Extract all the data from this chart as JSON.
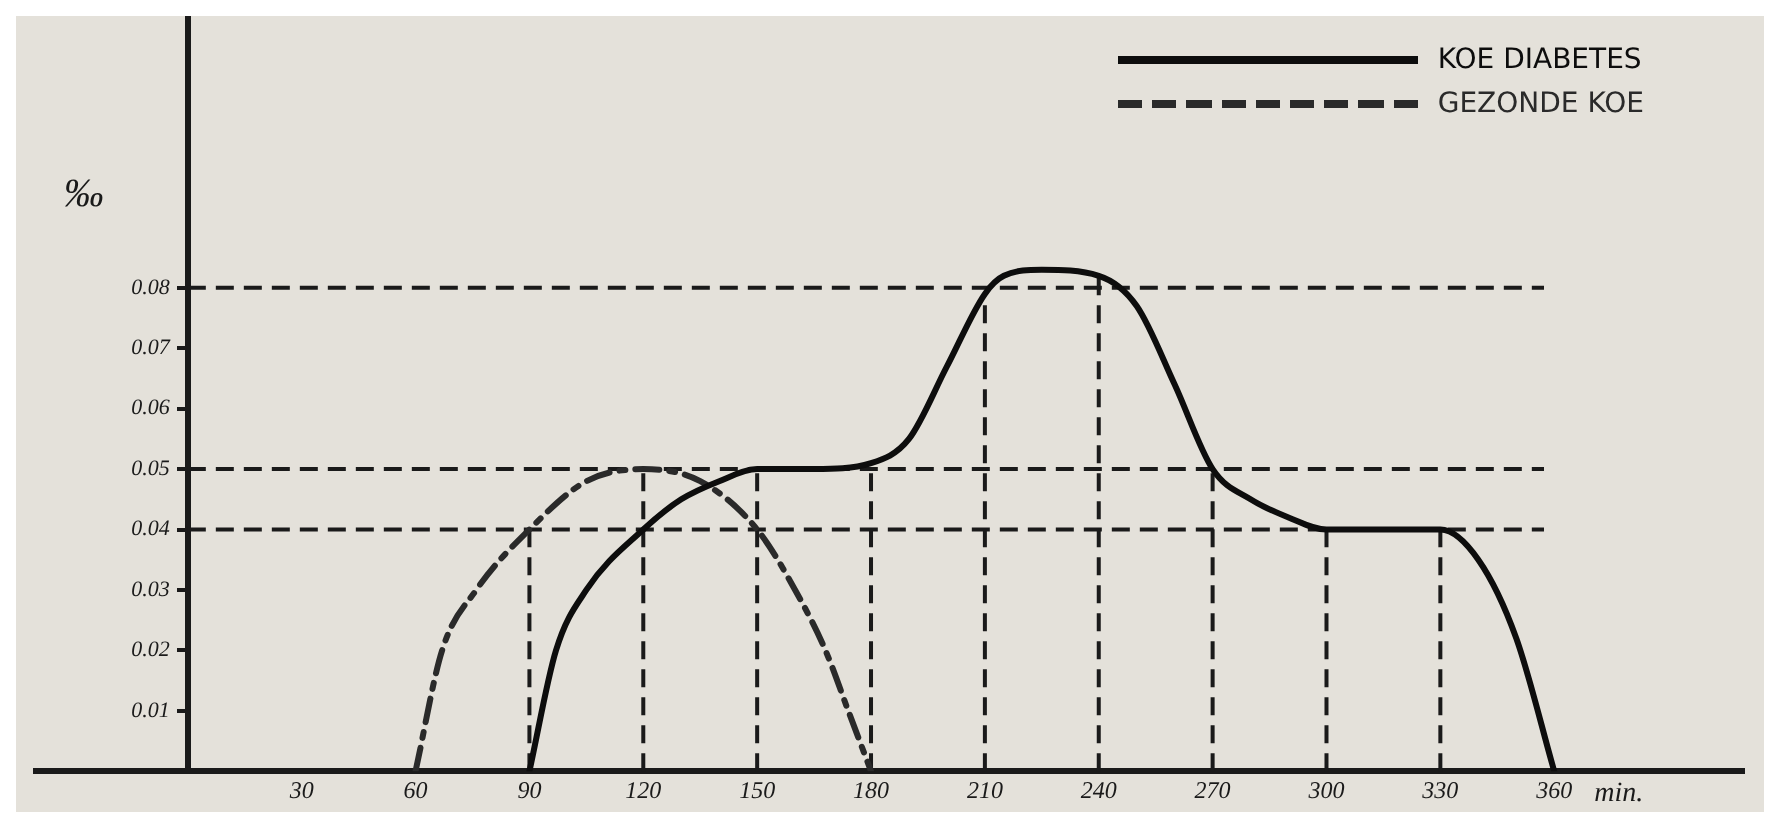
{
  "chart_data": {
    "type": "line",
    "xlabel": "min.",
    "ylabel": "‰",
    "xlim": [
      -40,
      410
    ],
    "ylim": [
      0,
      0.125
    ],
    "xticks": [
      30,
      60,
      90,
      120,
      150,
      180,
      210,
      240,
      270,
      300,
      330,
      360
    ],
    "yticks": [
      0.01,
      0.02,
      0.03,
      0.04,
      0.05,
      0.06,
      0.07,
      0.08
    ],
    "series": [
      {
        "name": "KOE DIABETES",
        "color": "#0d0d0d",
        "line_style": "solid",
        "x": [
          90,
          97,
          105,
          120,
          130,
          140,
          150,
          165,
          180,
          190,
          200,
          210,
          215,
          225,
          240,
          250,
          260,
          270,
          280,
          290,
          300,
          330,
          340,
          350,
          360
        ],
        "values": [
          0,
          0.02,
          0.03,
          0.04,
          0.045,
          0.048,
          0.05,
          0.05,
          0.051,
          0.055,
          0.067,
          0.079,
          0.082,
          0.083,
          0.082,
          0.077,
          0.064,
          0.05,
          0.045,
          0.042,
          0.04,
          0.04,
          0.035,
          0.022,
          0
        ]
      },
      {
        "name": "GEZONDE KOE",
        "color": "#2a2a2a",
        "line_style": "dashed",
        "x": [
          60,
          67,
          76,
          90,
          105,
          120,
          135,
          150,
          160,
          168,
          174,
          180
        ],
        "values": [
          0,
          0.02,
          0.03,
          0.04,
          0.048,
          0.05,
          0.048,
          0.04,
          0.03,
          0.02,
          0.01,
          0
        ]
      }
    ],
    "ref_lines": [
      {
        "axis": "y",
        "value": 0.08,
        "line_style": "dashed"
      },
      {
        "axis": "y",
        "value": 0.05,
        "line_style": "dashed"
      },
      {
        "axis": "y",
        "value": 0.04,
        "line_style": "dashed"
      },
      {
        "axis": "x",
        "value": 90,
        "line_style": "dashed"
      },
      {
        "axis": "x",
        "value": 120,
        "line_style": "dashed"
      },
      {
        "axis": "x",
        "value": 150,
        "line_style": "dashed"
      },
      {
        "axis": "x",
        "value": 180,
        "line_style": "dashed"
      },
      {
        "axis": "x",
        "value": 210,
        "line_style": "dashed"
      },
      {
        "axis": "x",
        "value": 240,
        "line_style": "dashed"
      },
      {
        "axis": "x",
        "value": 270,
        "line_style": "dashed"
      },
      {
        "axis": "x",
        "value": 300,
        "line_style": "dashed"
      },
      {
        "axis": "x",
        "value": 330,
        "line_style": "dashed"
      }
    ],
    "grid": false,
    "legend": "top right",
    "marker": "none"
  }
}
